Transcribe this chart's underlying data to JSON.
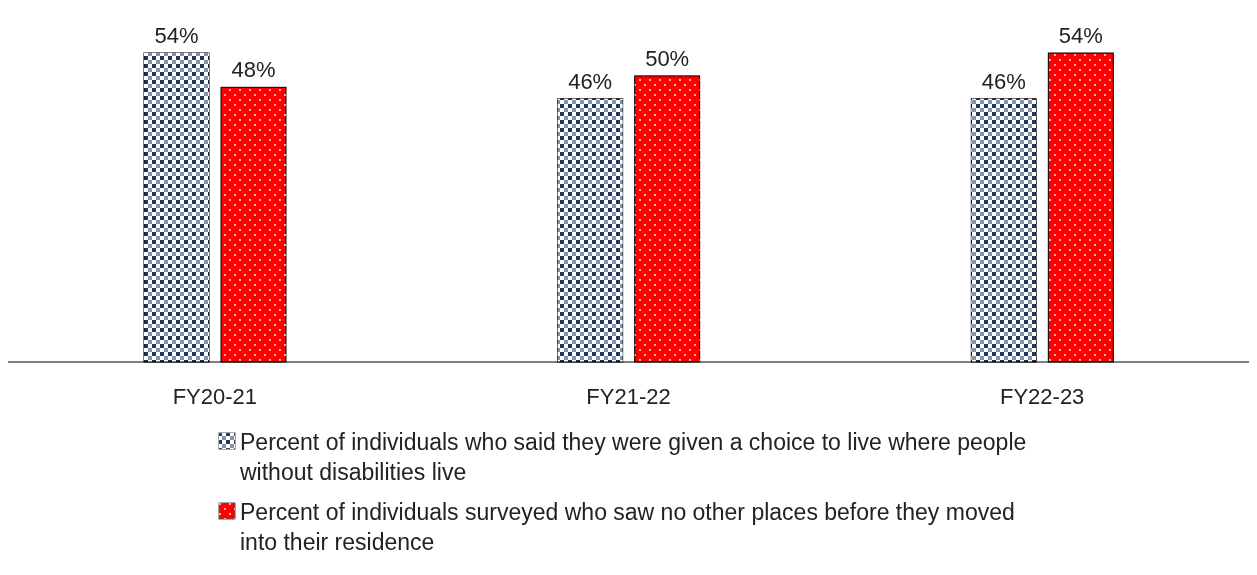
{
  "chart_data": {
    "type": "bar",
    "categories": [
      "FY20-21",
      "FY21-22",
      "FY22-23"
    ],
    "series": [
      {
        "name": "Percent of individuals who said they were given a choice to live where people without disabilities live",
        "color": "#1f3864",
        "values": [
          54,
          46,
          46
        ],
        "value_labels": [
          "54%",
          "46%",
          "46%"
        ]
      },
      {
        "name": "Percent of individuals surveyed who saw no other places before they moved into their residence",
        "color": "#ff0000",
        "values": [
          48,
          50,
          54
        ],
        "value_labels": [
          "48%",
          "50%",
          "54%"
        ]
      }
    ],
    "legend": "bottom"
  }
}
